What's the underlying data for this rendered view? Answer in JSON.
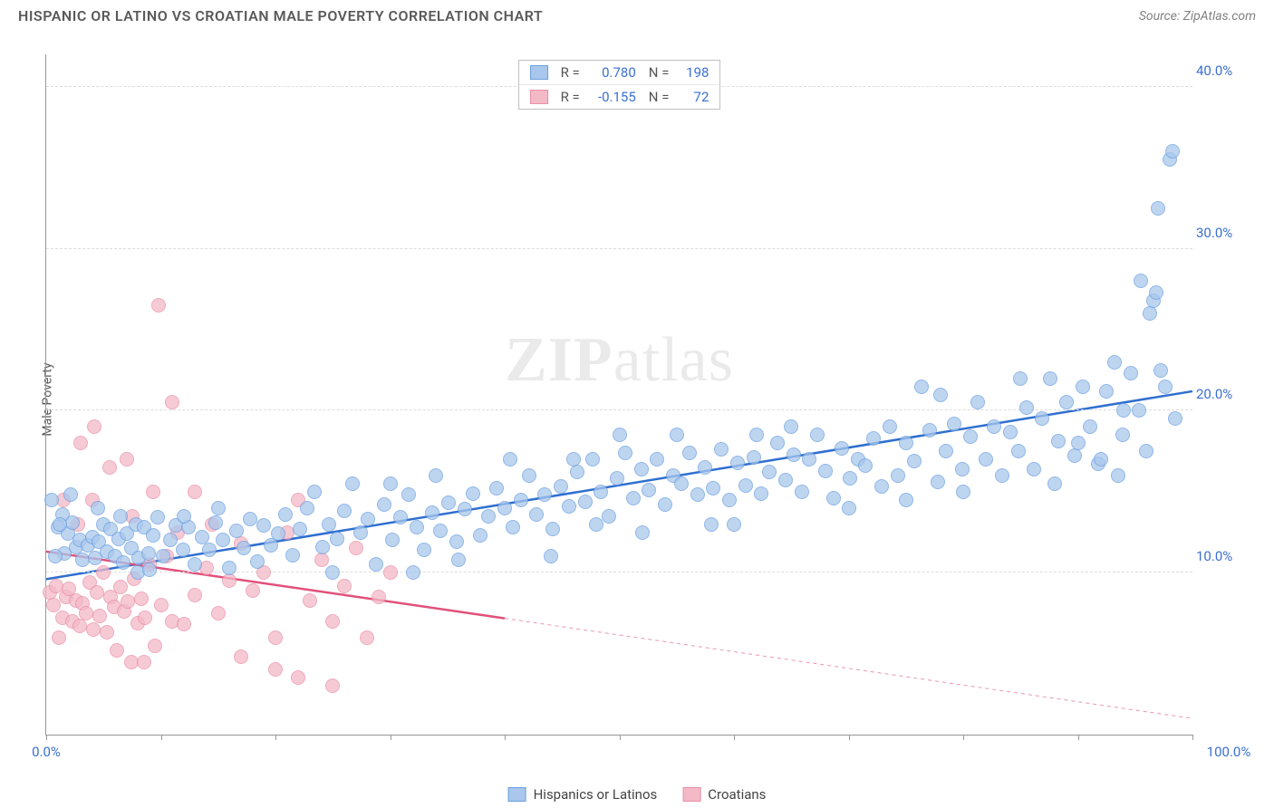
{
  "header": {
    "title": "HISPANIC OR LATINO VS CROATIAN MALE POVERTY CORRELATION CHART",
    "source_prefix": "Source: ",
    "source_name": "ZipAtlas.com"
  },
  "watermark": {
    "zip": "ZIP",
    "atlas": "atlas"
  },
  "chart": {
    "type": "scatter",
    "ylabel": "Male Poverty",
    "xlim": [
      0,
      100
    ],
    "ylim": [
      0,
      42
    ],
    "x_ticks": [
      0,
      10,
      20,
      30,
      40,
      50,
      60,
      70,
      80,
      90,
      100
    ],
    "x_tick_labels": {
      "0": "0.0%",
      "100": "100.0%"
    },
    "y_ticks": [
      10,
      20,
      30,
      40
    ],
    "y_tick_labels": {
      "10": "10.0%",
      "20": "20.0%",
      "30": "30.0%",
      "40": "40.0%"
    },
    "background_color": "#ffffff",
    "grid_color": "#dcdcdc",
    "axis_color": "#999999",
    "marker_radius": 8,
    "series": [
      {
        "key": "hispanic",
        "label": "Hispanics or Latinos",
        "fill": "#a9c7ec",
        "stroke": "#6b9fe0",
        "line_color": "#2f6fd0",
        "R": "0.780",
        "N": "198",
        "trend": {
          "x1": 0,
          "y1": 9.6,
          "x2": 100,
          "y2": 21.2,
          "solid_until_x": 100
        },
        "points": [
          [
            0.5,
            14.5
          ],
          [
            1,
            12.8
          ],
          [
            1.4,
            13.6
          ],
          [
            1.6,
            11.2
          ],
          [
            1.9,
            12.4
          ],
          [
            2.3,
            13.1
          ],
          [
            2.6,
            11.6
          ],
          [
            2.9,
            12.0
          ],
          [
            3.2,
            10.8
          ],
          [
            3.6,
            11.7
          ],
          [
            4.0,
            12.2
          ],
          [
            4.3,
            10.9
          ],
          [
            4.6,
            11.9
          ],
          [
            5.0,
            13.0
          ],
          [
            5.3,
            11.3
          ],
          [
            5.6,
            12.7
          ],
          [
            6.0,
            11.0
          ],
          [
            6.3,
            12.1
          ],
          [
            6.7,
            10.6
          ],
          [
            7.0,
            12.4
          ],
          [
            7.4,
            11.5
          ],
          [
            7.8,
            13.0
          ],
          [
            8.1,
            10.9
          ],
          [
            8.5,
            12.8
          ],
          [
            8.9,
            11.2
          ],
          [
            9.3,
            12.3
          ],
          [
            9.7,
            13.4
          ],
          [
            10.2,
            11.0
          ],
          [
            10.8,
            12.0
          ],
          [
            11.3,
            12.9
          ],
          [
            11.9,
            11.4
          ],
          [
            12.4,
            12.8
          ],
          [
            13.0,
            10.5
          ],
          [
            13.6,
            12.2
          ],
          [
            14.2,
            11.4
          ],
          [
            14.8,
            13.1
          ],
          [
            15.4,
            12.0
          ],
          [
            16.0,
            10.3
          ],
          [
            16.6,
            12.6
          ],
          [
            17.2,
            11.5
          ],
          [
            17.8,
            13.3
          ],
          [
            18.4,
            10.7
          ],
          [
            19.0,
            12.9
          ],
          [
            19.6,
            11.7
          ],
          [
            20.2,
            12.4
          ],
          [
            20.9,
            13.6
          ],
          [
            21.5,
            11.1
          ],
          [
            22.1,
            12.7
          ],
          [
            22.8,
            14.0
          ],
          [
            23.4,
            15.0
          ],
          [
            24.1,
            11.6
          ],
          [
            24.7,
            13.0
          ],
          [
            25.4,
            12.1
          ],
          [
            26.0,
            13.8
          ],
          [
            26.7,
            15.5
          ],
          [
            27.4,
            12.5
          ],
          [
            28.1,
            13.3
          ],
          [
            28.8,
            10.5
          ],
          [
            29.5,
            14.2
          ],
          [
            30.2,
            12.0
          ],
          [
            30.9,
            13.4
          ],
          [
            31.6,
            14.8
          ],
          [
            32.3,
            12.8
          ],
          [
            33.0,
            11.4
          ],
          [
            33.7,
            13.7
          ],
          [
            34.4,
            12.6
          ],
          [
            35.1,
            14.3
          ],
          [
            35.8,
            11.9
          ],
          [
            36.5,
            13.9
          ],
          [
            37.2,
            14.9
          ],
          [
            37.9,
            12.3
          ],
          [
            38.6,
            13.5
          ],
          [
            39.3,
            15.2
          ],
          [
            40.0,
            14.0
          ],
          [
            40.7,
            12.8
          ],
          [
            41.4,
            14.5
          ],
          [
            42.1,
            16.0
          ],
          [
            42.8,
            13.6
          ],
          [
            43.5,
            14.8
          ],
          [
            44.2,
            12.7
          ],
          [
            44.9,
            15.3
          ],
          [
            45.6,
            14.1
          ],
          [
            46.3,
            16.2
          ],
          [
            47.0,
            14.4
          ],
          [
            47.7,
            17.0
          ],
          [
            48.4,
            15.0
          ],
          [
            49.1,
            13.5
          ],
          [
            49.8,
            15.8
          ],
          [
            50.5,
            17.4
          ],
          [
            51.2,
            14.6
          ],
          [
            51.9,
            16.4
          ],
          [
            52.6,
            15.1
          ],
          [
            53.3,
            17.0
          ],
          [
            54.0,
            14.2
          ],
          [
            54.7,
            16.0
          ],
          [
            55.4,
            15.5
          ],
          [
            56.1,
            17.4
          ],
          [
            56.8,
            14.8
          ],
          [
            57.5,
            16.5
          ],
          [
            58.2,
            15.2
          ],
          [
            58.9,
            17.6
          ],
          [
            59.6,
            14.5
          ],
          [
            60.3,
            16.8
          ],
          [
            61.0,
            15.4
          ],
          [
            61.7,
            17.1
          ],
          [
            62.4,
            14.9
          ],
          [
            63.1,
            16.2
          ],
          [
            63.8,
            18.0
          ],
          [
            64.5,
            15.7
          ],
          [
            65.2,
            17.3
          ],
          [
            65.9,
            15.0
          ],
          [
            66.6,
            17.0
          ],
          [
            67.3,
            18.5
          ],
          [
            68.0,
            16.3
          ],
          [
            68.7,
            14.6
          ],
          [
            69.4,
            17.7
          ],
          [
            70.1,
            15.8
          ],
          [
            70.8,
            17.0
          ],
          [
            71.5,
            16.6
          ],
          [
            72.2,
            18.3
          ],
          [
            72.9,
            15.3
          ],
          [
            73.6,
            19.0
          ],
          [
            74.3,
            16.0
          ],
          [
            75.0,
            18.0
          ],
          [
            75.7,
            16.9
          ],
          [
            76.4,
            21.5
          ],
          [
            77.1,
            18.8
          ],
          [
            77.8,
            15.6
          ],
          [
            78.5,
            17.5
          ],
          [
            79.2,
            19.2
          ],
          [
            79.9,
            16.4
          ],
          [
            80.6,
            18.4
          ],
          [
            81.3,
            20.5
          ],
          [
            82.0,
            17.0
          ],
          [
            82.7,
            19.0
          ],
          [
            83.4,
            16.0
          ],
          [
            84.1,
            18.7
          ],
          [
            84.8,
            17.5
          ],
          [
            85.5,
            20.2
          ],
          [
            86.2,
            16.4
          ],
          [
            86.9,
            19.5
          ],
          [
            87.6,
            22.0
          ],
          [
            88.3,
            18.1
          ],
          [
            89.0,
            20.5
          ],
          [
            89.7,
            17.2
          ],
          [
            90.4,
            21.5
          ],
          [
            91.1,
            19.0
          ],
          [
            91.8,
            16.7
          ],
          [
            92.5,
            21.2
          ],
          [
            93.2,
            23.0
          ],
          [
            93.9,
            18.5
          ],
          [
            94.6,
            22.3
          ],
          [
            95.3,
            20.0
          ],
          [
            96.0,
            17.5
          ],
          [
            96.3,
            26.0
          ],
          [
            96.6,
            26.8
          ],
          [
            96.8,
            27.3
          ],
          [
            97.2,
            22.5
          ],
          [
            97.6,
            21.5
          ],
          [
            97.0,
            32.5
          ],
          [
            98.0,
            35.5
          ],
          [
            98.3,
            36.0
          ],
          [
            98.5,
            19.5
          ],
          [
            34.0,
            16.0
          ],
          [
            15.0,
            14.0
          ],
          [
            8.0,
            10.0
          ],
          [
            50.0,
            18.5
          ],
          [
            60.0,
            13.0
          ],
          [
            70.0,
            14.0
          ],
          [
            25.0,
            10.0
          ],
          [
            12.0,
            13.5
          ],
          [
            2.1,
            14.8
          ],
          [
            0.8,
            11.0
          ],
          [
            1.2,
            13.0
          ],
          [
            40.5,
            17.0
          ],
          [
            55.0,
            18.5
          ],
          [
            65.0,
            19.0
          ],
          [
            75.0,
            14.5
          ],
          [
            80.0,
            15.0
          ],
          [
            85.0,
            22.0
          ],
          [
            88.0,
            15.5
          ],
          [
            90.0,
            18.0
          ],
          [
            92.0,
            17.0
          ],
          [
            94.0,
            20.0
          ],
          [
            78.0,
            21.0
          ],
          [
            48.0,
            13.0
          ],
          [
            52.0,
            12.5
          ],
          [
            58.0,
            13.0
          ],
          [
            62.0,
            18.5
          ],
          [
            4.5,
            14.0
          ],
          [
            6.5,
            13.5
          ],
          [
            9.0,
            10.2
          ],
          [
            30.0,
            15.5
          ],
          [
            32.0,
            10.0
          ],
          [
            36.0,
            10.8
          ],
          [
            44.0,
            11.0
          ],
          [
            46.0,
            17.0
          ],
          [
            95.5,
            28.0
          ],
          [
            93.5,
            16.0
          ]
        ]
      },
      {
        "key": "croatian",
        "label": "Croatians",
        "fill": "#f4b9c7",
        "stroke": "#e98fa6",
        "line_color": "#e1507a",
        "R": "-0.155",
        "N": "72",
        "trend": {
          "x1": 0,
          "y1": 11.3,
          "x2": 100,
          "y2": 1.0,
          "solid_until_x": 40
        },
        "points": [
          [
            0.3,
            8.8
          ],
          [
            0.6,
            8.0
          ],
          [
            0.9,
            9.2
          ],
          [
            1.1,
            6.0
          ],
          [
            1.4,
            7.2
          ],
          [
            1.7,
            8.5
          ],
          [
            2.0,
            9.0
          ],
          [
            2.3,
            7.0
          ],
          [
            2.6,
            8.3
          ],
          [
            2.9,
            6.7
          ],
          [
            3.2,
            8.1
          ],
          [
            3.5,
            7.5
          ],
          [
            3.8,
            9.4
          ],
          [
            4.1,
            6.5
          ],
          [
            4.4,
            8.8
          ],
          [
            4.7,
            7.3
          ],
          [
            5.0,
            10.0
          ],
          [
            5.3,
            6.3
          ],
          [
            5.6,
            8.5
          ],
          [
            5.9,
            7.9
          ],
          [
            6.2,
            5.2
          ],
          [
            6.5,
            9.1
          ],
          [
            6.8,
            7.6
          ],
          [
            7.1,
            8.2
          ],
          [
            7.4,
            4.5
          ],
          [
            7.7,
            9.6
          ],
          [
            8.0,
            6.9
          ],
          [
            8.3,
            8.4
          ],
          [
            8.6,
            7.2
          ],
          [
            9.0,
            10.5
          ],
          [
            9.5,
            5.5
          ],
          [
            10.0,
            8.0
          ],
          [
            10.5,
            11.0
          ],
          [
            11.0,
            7.0
          ],
          [
            11.5,
            12.5
          ],
          [
            12.0,
            6.8
          ],
          [
            9.8,
            26.5
          ],
          [
            3.0,
            18.0
          ],
          [
            4.2,
            19.0
          ],
          [
            7.0,
            17.0
          ],
          [
            11.0,
            20.5
          ],
          [
            1.5,
            14.5
          ],
          [
            2.8,
            13.0
          ],
          [
            4.0,
            14.5
          ],
          [
            5.5,
            16.5
          ],
          [
            7.5,
            13.5
          ],
          [
            9.3,
            15.0
          ],
          [
            13.0,
            8.6
          ],
          [
            14.0,
            10.3
          ],
          [
            15.0,
            7.5
          ],
          [
            16.0,
            9.5
          ],
          [
            17.0,
            11.8
          ],
          [
            18.0,
            8.9
          ],
          [
            19.0,
            10.0
          ],
          [
            20.0,
            6.0
          ],
          [
            21.0,
            12.5
          ],
          [
            22.0,
            14.5
          ],
          [
            23.0,
            8.3
          ],
          [
            24.0,
            10.8
          ],
          [
            25.0,
            7.0
          ],
          [
            26.0,
            9.2
          ],
          [
            27.0,
            11.5
          ],
          [
            28.0,
            6.0
          ],
          [
            29.0,
            8.5
          ],
          [
            30.0,
            10.0
          ],
          [
            20.0,
            4.0
          ],
          [
            22.0,
            3.5
          ],
          [
            25.0,
            3.0
          ],
          [
            17.0,
            4.8
          ],
          [
            13.0,
            15.0
          ],
          [
            14.5,
            13.0
          ],
          [
            8.5,
            4.5
          ]
        ]
      }
    ]
  },
  "legend_bottom": [
    {
      "series": "hispanic"
    },
    {
      "series": "croatian"
    }
  ]
}
